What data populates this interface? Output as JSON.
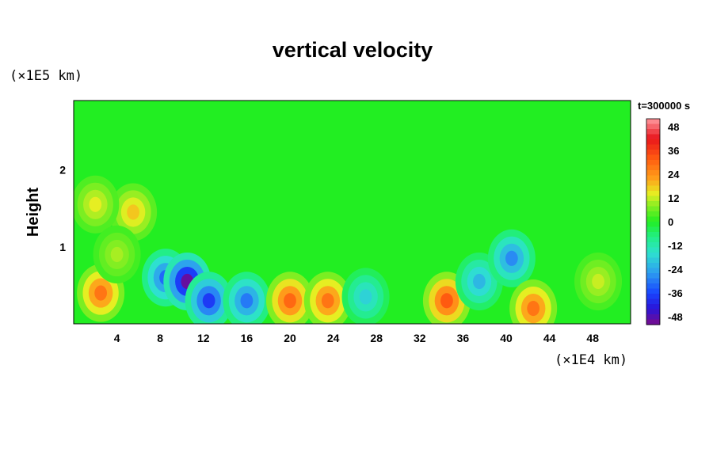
{
  "chart_data": {
    "type": "heatmap",
    "title": "vertical velocity",
    "ylabel": "Height",
    "y_unit_label": "(×1E5 km)",
    "x_unit_label": "(×1E4 km)",
    "time_label": "t=300000 s",
    "xlim": [
      0,
      51.5
    ],
    "ylim": [
      0,
      2.9
    ],
    "x_ticks": [
      "4",
      "8",
      "12",
      "16",
      "20",
      "24",
      "28",
      "32",
      "36",
      "40",
      "44",
      "48"
    ],
    "y_ticks": [
      "1",
      "2"
    ],
    "colorbar": {
      "range": [
        -52,
        52
      ],
      "ticks": [
        "48",
        "36",
        "24",
        "12",
        "0",
        "-12",
        "-24",
        "-36",
        "-48"
      ]
    },
    "features": [
      {
        "x": 2.5,
        "y": 0.4,
        "value": 28
      },
      {
        "x": 5.5,
        "y": 1.45,
        "value": 18
      },
      {
        "x": 2.0,
        "y": 1.55,
        "value": 14
      },
      {
        "x": 8.5,
        "y": 0.6,
        "value": -32
      },
      {
        "x": 10.5,
        "y": 0.55,
        "value": -50
      },
      {
        "x": 12.5,
        "y": 0.3,
        "value": -38
      },
      {
        "x": 16.0,
        "y": 0.3,
        "value": -30
      },
      {
        "x": 20.0,
        "y": 0.3,
        "value": 30
      },
      {
        "x": 23.5,
        "y": 0.3,
        "value": 28
      },
      {
        "x": 27.0,
        "y": 0.35,
        "value": -18
      },
      {
        "x": 34.5,
        "y": 0.3,
        "value": 32
      },
      {
        "x": 37.5,
        "y": 0.55,
        "value": -22
      },
      {
        "x": 40.5,
        "y": 0.85,
        "value": -28
      },
      {
        "x": 42.5,
        "y": 0.2,
        "value": 28
      },
      {
        "x": 48.5,
        "y": 0.55,
        "value": 12
      },
      {
        "x": 4.0,
        "y": 0.9,
        "value": 10
      }
    ]
  }
}
